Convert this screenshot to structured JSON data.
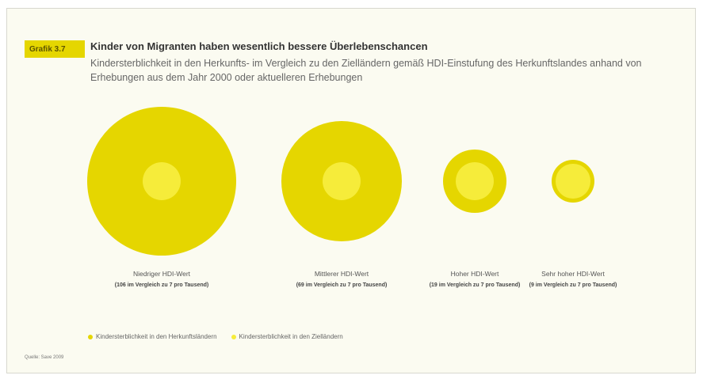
{
  "figure": {
    "badge": "Grafik 3.7",
    "source": "Quelle: Save 2009"
  },
  "chart_data": {
    "type": "bubble",
    "title": "Kinder von Migranten haben wesentlich bessere Überlebenschancen",
    "subtitle": "Kindersterblichkeit in den Herkunfts- im Vergleich zu den Zielländern gemäß HDI-Einstufung des Herkunftslandes anhand von Erhebungen aus dem Jahr 2000 oder aktuelleren Erhebungen",
    "series": [
      {
        "name": "Kindersterblichkeit in den Herkunftsländern",
        "color": "#e5d600",
        "values": [
          106,
          69,
          19,
          9
        ]
      },
      {
        "name": "Kindersterblichkeit in den Zielländern",
        "color": "#f6ec3a",
        "values": [
          7,
          7,
          7,
          7
        ]
      }
    ],
    "categories": [
      {
        "name": "Niedriger HDI-Wert",
        "note": "(106 im Vergleich zu 7 pro Tausend)"
      },
      {
        "name": "Mittlerer HDI-Wert",
        "note": "(69 im Vergleich zu 7 pro Tausend)"
      },
      {
        "name": "Hoher HDI-Wert",
        "note": "(19 im Vergleich zu 7 pro Tausend)"
      },
      {
        "name": "Sehr hoher HDI-Wert",
        "note": "(9 im Vergleich zu 7 pro Tausend)"
      }
    ]
  }
}
